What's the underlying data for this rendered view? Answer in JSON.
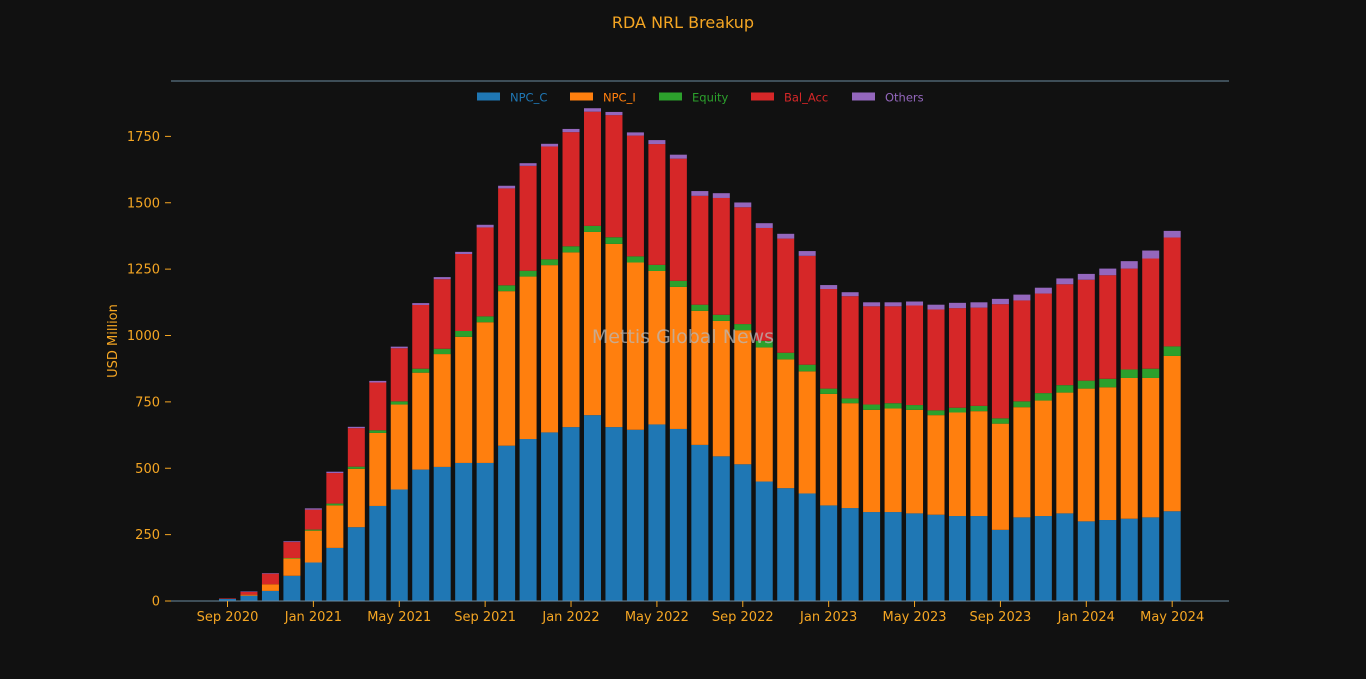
{
  "colors": {
    "background": "#111111",
    "accent_text": "#f5a623",
    "axis_line": "#6a8aa0",
    "watermark": "#b8b8b8"
  },
  "watermark": "Mettis Global News",
  "chart_data": {
    "type": "bar",
    "stacked": true,
    "title": "RDA NRL Breakup",
    "xlabel": "",
    "ylabel": "USD Million",
    "ylim": [
      0,
      1950
    ],
    "yticks": [
      0,
      250,
      500,
      750,
      1000,
      1250,
      1500,
      1750
    ],
    "grid": false,
    "legend_position": "top-center",
    "x_tick_labels": [
      "Sep 2020",
      "Jan 2021",
      "May 2021",
      "Sep 2021",
      "Jan 2022",
      "May 2022",
      "Sep 2022",
      "Jan 2023",
      "May 2023",
      "Sep 2023",
      "Jan 2024",
      "May 2024"
    ],
    "x_tick_months": [
      "2020-09",
      "2021-01",
      "2021-05",
      "2021-09",
      "2022-01",
      "2022-05",
      "2022-09",
      "2023-01",
      "2023-05",
      "2023-09",
      "2024-01",
      "2024-05"
    ],
    "categories": [
      "2020-09",
      "2020-10",
      "2020-11",
      "2020-12",
      "2021-01",
      "2021-02",
      "2021-03",
      "2021-04",
      "2021-05",
      "2021-06",
      "2021-07",
      "2021-08",
      "2021-09",
      "2021-10",
      "2021-11",
      "2021-12",
      "2022-01",
      "2022-02",
      "2022-03",
      "2022-04",
      "2022-05",
      "2022-06",
      "2022-07",
      "2022-08",
      "2022-09",
      "2022-10",
      "2022-11",
      "2022-12",
      "2023-01",
      "2023-02",
      "2023-03",
      "2023-04",
      "2023-05",
      "2023-06",
      "2023-07",
      "2023-08",
      "2023-09",
      "2023-10",
      "2023-11",
      "2023-12",
      "2024-01",
      "2024-02",
      "2024-03",
      "2024-04",
      "2024-05"
    ],
    "series": [
      {
        "name": "NPC_C",
        "color": "#1f77b4",
        "values": [
          8,
          20,
          38,
          95,
          145,
          200,
          278,
          358,
          420,
          495,
          505,
          520,
          520,
          585,
          610,
          635,
          655,
          700,
          655,
          645,
          665,
          648,
          588,
          545,
          515,
          450,
          425,
          405,
          360,
          350,
          335,
          335,
          330,
          325,
          320,
          320,
          268,
          315,
          320,
          330,
          300,
          305,
          310,
          315,
          338
        ]
      },
      {
        "name": "NPC_I",
        "color": "#ff7f0e",
        "values": [
          0,
          4,
          25,
          65,
          120,
          160,
          220,
          275,
          320,
          365,
          425,
          475,
          530,
          582,
          612,
          630,
          658,
          690,
          690,
          630,
          578,
          535,
          505,
          510,
          505,
          505,
          485,
          460,
          420,
          395,
          385,
          390,
          390,
          375,
          390,
          395,
          400,
          415,
          435,
          455,
          500,
          500,
          530,
          525,
          585
        ]
      },
      {
        "name": "Equity",
        "color": "#2ca02c",
        "values": [
          0,
          0,
          0,
          2,
          4,
          7,
          8,
          10,
          12,
          15,
          20,
          22,
          22,
          22,
          22,
          22,
          23,
          23,
          25,
          23,
          23,
          23,
          23,
          23,
          23,
          25,
          25,
          25,
          20,
          18,
          20,
          20,
          18,
          18,
          18,
          20,
          20,
          22,
          28,
          28,
          30,
          32,
          32,
          35,
          36
        ]
      },
      {
        "name": "Bal_Acc",
        "color": "#d62728",
        "values": [
          2,
          10,
          40,
          60,
          75,
          115,
          145,
          180,
          200,
          240,
          262,
          290,
          335,
          365,
          395,
          425,
          430,
          430,
          460,
          455,
          455,
          460,
          410,
          440,
          440,
          425,
          430,
          410,
          375,
          385,
          370,
          365,
          375,
          380,
          375,
          370,
          430,
          380,
          375,
          380,
          380,
          390,
          380,
          415,
          410
        ]
      },
      {
        "name": "Others",
        "color": "#9467bd",
        "values": [
          0,
          2,
          2,
          3,
          5,
          5,
          5,
          6,
          6,
          7,
          8,
          8,
          10,
          10,
          10,
          10,
          12,
          13,
          12,
          12,
          15,
          15,
          18,
          18,
          18,
          18,
          18,
          18,
          15,
          15,
          15,
          15,
          15,
          18,
          20,
          20,
          20,
          22,
          22,
          22,
          22,
          25,
          28,
          30,
          25
        ]
      }
    ]
  }
}
